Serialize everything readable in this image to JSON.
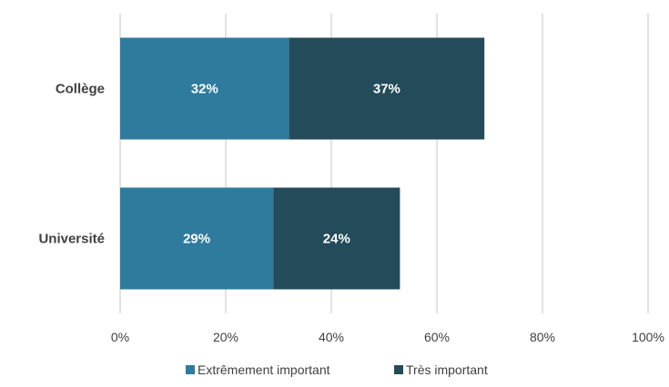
{
  "chart_data": {
    "type": "bar",
    "orientation": "horizontal",
    "stacked": true,
    "categories": [
      "Collège",
      "Université"
    ],
    "series": [
      {
        "name": "Extrêmement important",
        "values": [
          32,
          29
        ],
        "labels": [
          "32%",
          "29%"
        ],
        "color": "#2e7b9e"
      },
      {
        "name": "Très important",
        "values": [
          37,
          24
        ],
        "labels": [
          "37%",
          "24%"
        ],
        "color": "#244b5a"
      }
    ],
    "x_ticks": [
      0,
      20,
      40,
      60,
      80,
      100
    ],
    "x_tick_labels": [
      "0%",
      "20%",
      "40%",
      "60%",
      "80%",
      "100%"
    ],
    "xlim": [
      0,
      100
    ],
    "grid": true,
    "legend_position": "bottom",
    "title": "",
    "xlabel": "",
    "ylabel": ""
  }
}
